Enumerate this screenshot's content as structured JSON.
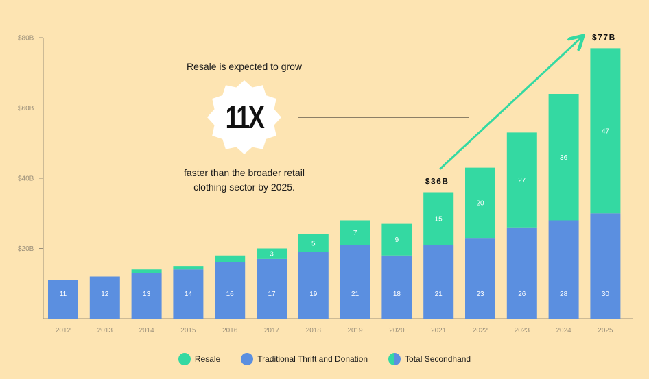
{
  "colors": {
    "background": "#fde4b2",
    "resale": "#34d9a2",
    "thrift": "#5b8fe0",
    "axis": "#9a8f7a",
    "arrow": "#34d9a2"
  },
  "callout": {
    "top_text": "Resale is expected to grow",
    "multiplier": "11X",
    "bottom_line1": "faster than the broader retail",
    "bottom_line2": "clothing sector by 2025."
  },
  "legend": {
    "resale": "Resale",
    "thrift": "Traditional Thrift and Donation",
    "total": "Total Secondhand"
  },
  "chart_data": {
    "type": "bar",
    "stacked": true,
    "categories": [
      "2012",
      "2013",
      "2014",
      "2015",
      "2016",
      "2017",
      "2018",
      "2019",
      "2020",
      "2021",
      "2022",
      "2023",
      "2024",
      "2025"
    ],
    "series": [
      {
        "name": "Traditional Thrift and Donation",
        "values": [
          11,
          12,
          13,
          14,
          16,
          17,
          19,
          21,
          18,
          21,
          23,
          26,
          28,
          30
        ],
        "labels": [
          "11",
          "12",
          "13",
          "14",
          "16",
          "17",
          "19",
          "21",
          "18",
          "21",
          "23",
          "26",
          "28",
          "30"
        ]
      },
      {
        "name": "Resale",
        "values": [
          0,
          0,
          1,
          1,
          2,
          3,
          5,
          7,
          9,
          15,
          20,
          27,
          36,
          47
        ],
        "labels": [
          "",
          "",
          "",
          "",
          "",
          "3",
          "5",
          "7",
          "9",
          "15",
          "20",
          "27",
          "36",
          "47"
        ]
      }
    ],
    "total_annotations": [
      {
        "category": "2021",
        "text": "$36B"
      },
      {
        "category": "2025",
        "text": "$77B"
      }
    ],
    "yticks": [
      {
        "value": 20,
        "label": "$20B"
      },
      {
        "value": 40,
        "label": "$40B"
      },
      {
        "value": 60,
        "label": "$60B"
      },
      {
        "value": 80,
        "label": "$80B"
      }
    ],
    "ylim": [
      0,
      80
    ],
    "grid": false,
    "legend_position": "bottom-center"
  }
}
